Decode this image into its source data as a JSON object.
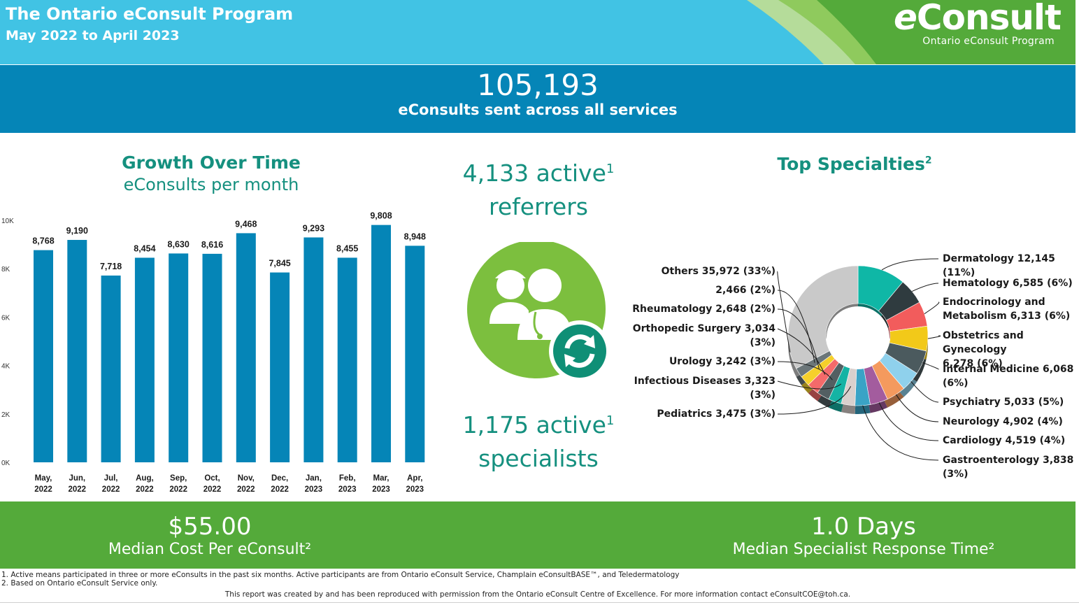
{
  "header": {
    "title": "The Ontario eConsult Program",
    "subtitle": "May 2022 to April 2023",
    "logo_word": "eConsult",
    "logo_tagline": "Ontario eConsult Program"
  },
  "banner": {
    "value": "105,193",
    "label": "eConsults sent across all services"
  },
  "growth": {
    "title": "Growth Over Time",
    "subtitle": "eConsults per month"
  },
  "middle": {
    "referrers_value": "4,133 active",
    "referrers_label": "referrers",
    "specialists_value": "1,175 active",
    "specialists_label": "specialists",
    "sup": "1"
  },
  "specialties": {
    "title": "Top Specialties",
    "sup": "2"
  },
  "footer": {
    "cost_value": "$55.00",
    "cost_label": "Median Cost Per eConsult²",
    "response_value": "1.0  Days",
    "response_label": "Median Specialist Response Time²"
  },
  "notes": {
    "note1": "1. Active means participated in three or more eConsults in the past six months. Active participants are from Ontario eConsult Service, Champlain eConsultBASE™, and Teledermatology",
    "note2": "2. Based on Ontario eConsult Service only.",
    "credit": "This report was created by and has been reproduced with permission from the Ontario eConsult Centre of Excellence. For more information contact eConsultCOE@toh.ca."
  },
  "colors": {
    "header_bg": "#41c3e4",
    "banner_bg": "#0585b7",
    "bar": "#0585b7",
    "teal_text": "#15907f",
    "footer_bg": "#54aa3a",
    "icon_green": "#7cbf3e",
    "icon_teal": "#0f8f76"
  },
  "chart_data": [
    {
      "type": "bar",
      "title": "Growth Over Time",
      "subtitle": "eConsults per month",
      "categories": [
        "May, 2022",
        "Jun, 2022",
        "Jul, 2022",
        "Aug, 2022",
        "Sep, 2022",
        "Oct, 2022",
        "Nov, 2022",
        "Dec, 2022",
        "Jan, 2023",
        "Feb, 2023",
        "Mar, 2023",
        "Apr, 2023"
      ],
      "values": [
        8768,
        9190,
        7718,
        8454,
        8630,
        8616,
        9468,
        7845,
        9293,
        8455,
        9808,
        8948
      ],
      "value_labels": [
        "8,768",
        "9,190",
        "7,718",
        "8,454",
        "8,630",
        "8,616",
        "9,468",
        "7,845",
        "9,293",
        "8,455",
        "9,808",
        "8,948"
      ],
      "yticks": [
        "0K",
        "2K",
        "4K",
        "6K",
        "8K",
        "10K"
      ],
      "ylim": [
        0,
        10000
      ],
      "grid": false
    },
    {
      "type": "pie",
      "title": "Top Specialties",
      "style": "3d-donut",
      "slices": [
        {
          "label": "Dermatology 12,145 (11%)",
          "value": 12145,
          "color": "#0fb7a6"
        },
        {
          "label": "Hematology 6,585 (6%)",
          "value": 6585,
          "color": "#2f3b3f"
        },
        {
          "label": "Endocrinology and Metabolism 6,313 (6%)",
          "value": 6313,
          "color": "#f25c5c"
        },
        {
          "label": "Obstetrics and Gynecology 6,278 (6%)",
          "value": 6278,
          "color": "#f2c919"
        },
        {
          "label": "Internal Medicine 6,068 (6%)",
          "value": 6068,
          "color": "#4b5a5e"
        },
        {
          "label": "Psychiatry 5,033 (5%)",
          "value": 5033,
          "color": "#8fd1ec"
        },
        {
          "label": "Neurology 4,902 (4%)",
          "value": 4902,
          "color": "#f49a5e"
        },
        {
          "label": "Cardiology 4,519 (4%)",
          "value": 4519,
          "color": "#a35c9e"
        },
        {
          "label": "Gastroenterology 3,838 (3%)",
          "value": 3838,
          "color": "#3aa3c6"
        },
        {
          "label": "Pediatrics 3,475 (3%)",
          "value": 3475,
          "color": "#d9d0cd"
        },
        {
          "label": "Infectious Diseases 3,323 (3%)",
          "value": 3323,
          "color": "#15b3a4"
        },
        {
          "label": "Urology 3,242 (3%)",
          "value": 3242,
          "color": "#535f62"
        },
        {
          "label": "Orthopedic Surgery 3,034 (3%)",
          "value": 3034,
          "color": "#f46a6a"
        },
        {
          "label": "Rheumatology 2,648 (2%)",
          "value": 2648,
          "color": "#f5d02b"
        },
        {
          "label": "2,466 (2%)",
          "value": 2466,
          "color": "#6b7679"
        },
        {
          "label": "Others 35,972 (33%)",
          "value": 35972,
          "color": "#c9c9c9"
        }
      ],
      "right_labels": [
        [
          "Dermatology 12,145 (11%)"
        ],
        [
          "Hematology 6,585 (6%)"
        ],
        [
          "Endocrinology and",
          "Metabolism 6,313 (6%)"
        ],
        [
          "Obstetrics and Gynecology",
          "6,278 (6%)"
        ],
        [
          "Internal Medicine 6,068",
          "(6%)"
        ],
        [
          "Psychiatry 5,033 (5%)"
        ],
        [
          "Neurology 4,902 (4%)"
        ],
        [
          "Cardiology 4,519 (4%)"
        ],
        [
          "Gastroenterology 3,838",
          "(3%)"
        ]
      ],
      "left_labels": [
        [
          "Others 35,972 (33%)"
        ],
        [
          "2,466 (2%)"
        ],
        [
          "Rheumatology 2,648 (2%)"
        ],
        [
          "Orthopedic Surgery 3,034",
          "(3%)"
        ],
        [
          "Urology 3,242 (3%)"
        ],
        [
          "Infectious Diseases 3,323",
          "(3%)"
        ],
        [
          "Pediatrics 3,475 (3%)"
        ]
      ]
    }
  ]
}
